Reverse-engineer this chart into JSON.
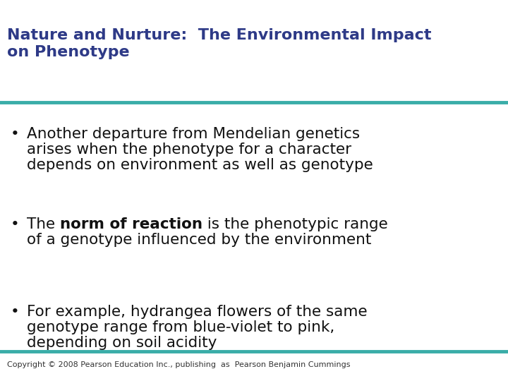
{
  "title_line1": "Nature and Nurture:  The Environmental Impact",
  "title_line2": "on Phenotype",
  "title_color": "#2E3A87",
  "title_fontsize": 16,
  "separator_color": "#3AADA8",
  "separator_linewidth": 3.5,
  "background_color": "#FFFFFF",
  "bullet_color": "#111111",
  "bullet_fontsize": 15.5,
  "bullet1_lines": [
    "Another departure from Mendelian genetics",
    "arises when the phenotype for a character",
    "depends on environment as well as genotype"
  ],
  "bullet2_line1_before": "The ",
  "bullet2_line1_bold": "norm of reaction",
  "bullet2_line1_after": " is the phenotypic range",
  "bullet2_line2": "of a genotype influenced by the environment",
  "bullet3_lines": [
    "For example, hydrangea flowers of the same",
    "genotype range from blue-violet to pink,",
    "depending on soil acidity"
  ],
  "copyright_text": "Copyright © 2008 Pearson Education Inc., publishing  as  Pearson Benjamin Cummings",
  "copyright_fontsize": 8,
  "copyright_color": "#333333"
}
